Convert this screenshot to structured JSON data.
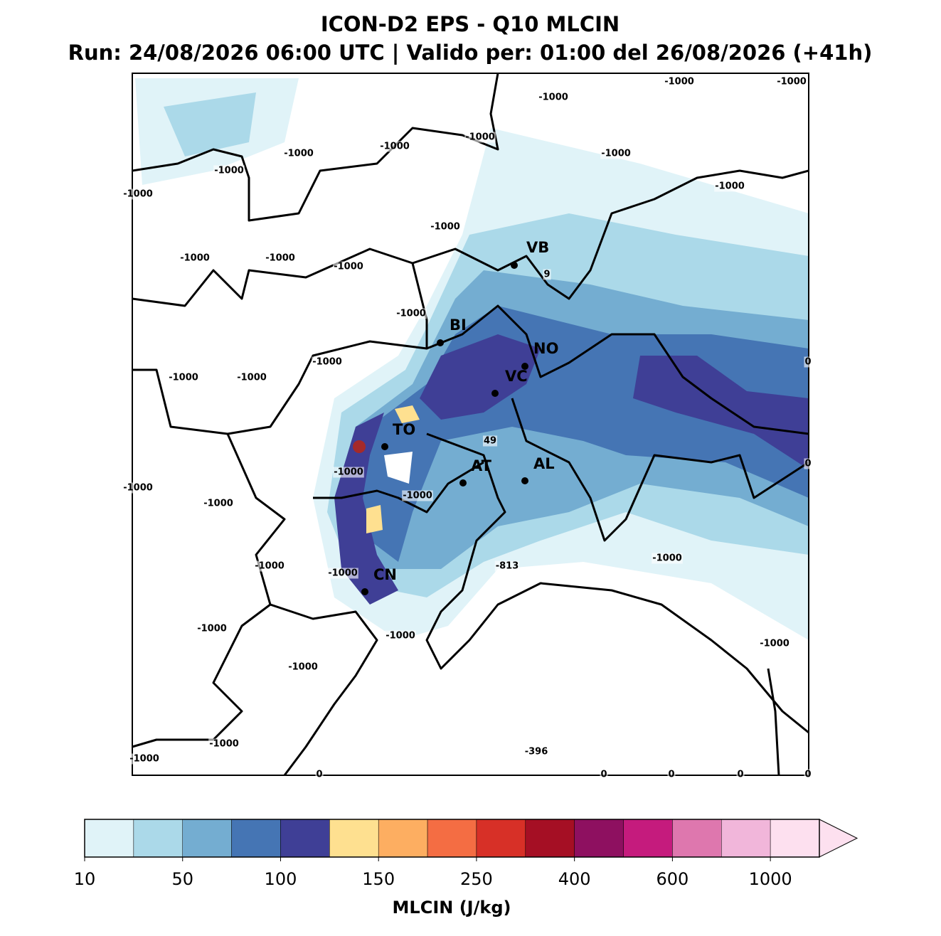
{
  "header": {
    "title": "ICON-D2 EPS - Q10 MLCIN",
    "subtitle": "Run: 24/08/2026 06:00 UTC | Valido per: 01:00 del 26/08/2026 (+41h)"
  },
  "map": {
    "cities": [
      "VB",
      "BI",
      "NO",
      "VC",
      "TO",
      "AT",
      "AL",
      "CN"
    ],
    "contour_labels": [
      -1000,
      -1000,
      -1000,
      -1000,
      -1000,
      -1000,
      -1000,
      -1000,
      -1000,
      -1000,
      -1000,
      -1000,
      -1000,
      -1000,
      9,
      -1000,
      0,
      -1000,
      -1000,
      -1000,
      49,
      0,
      -1000,
      -1000,
      -1000,
      -1000,
      -1000,
      -813,
      -1000,
      -1000,
      -1000,
      -1000,
      -1000,
      -1000,
      -1000,
      -396,
      -1000,
      0,
      0,
      0,
      0,
      0
    ]
  },
  "colorbar": {
    "label": "MLCIN (J/kg)",
    "colors": [
      "#e0f3f8",
      "#abd9e9",
      "#74add1",
      "#4575b4",
      "#3f3f96",
      "#fee090",
      "#fdae61",
      "#f46d43",
      "#d73027",
      "#a50f24",
      "#8e1060",
      "#c51b7d",
      "#de77ae",
      "#f1b6da",
      "#fde0ef"
    ],
    "ticks": [
      10,
      50,
      100,
      150,
      250,
      400,
      600,
      1000
    ]
  }
}
